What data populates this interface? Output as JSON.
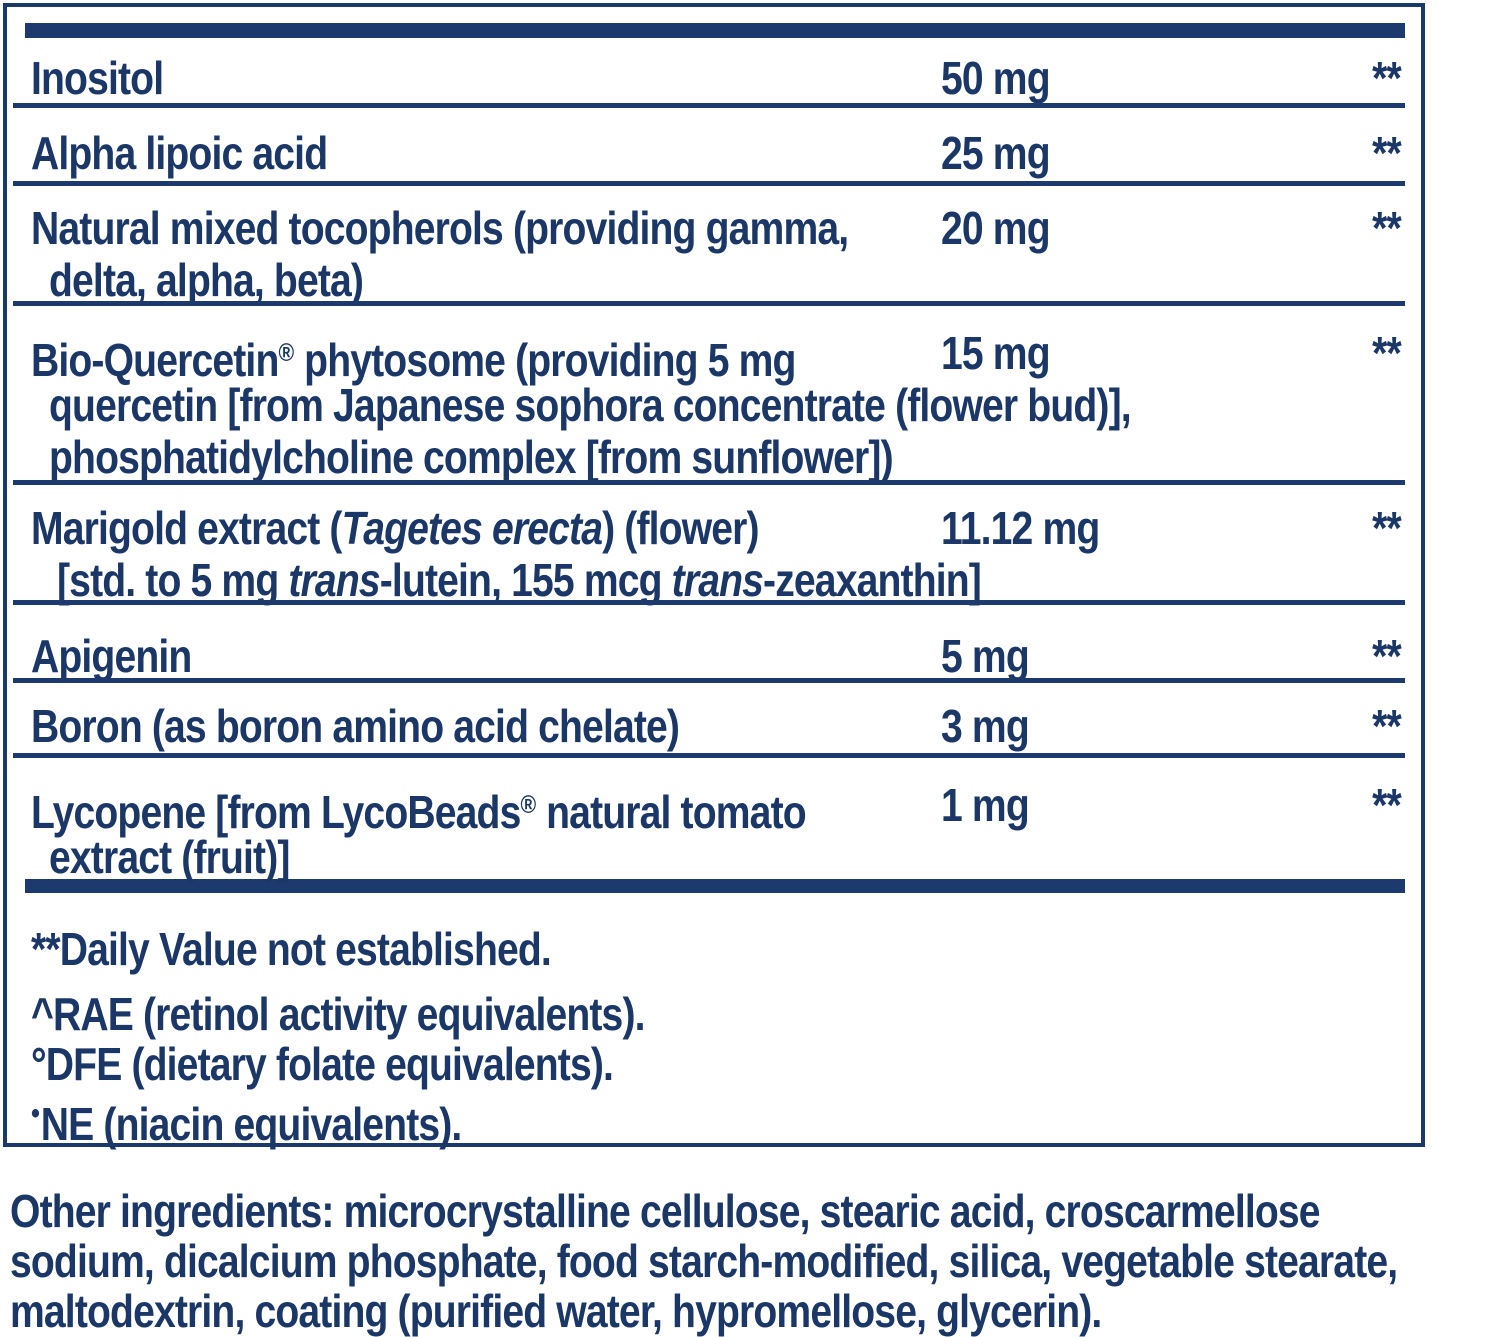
{
  "colors": {
    "navy_text": "#1b3767",
    "navy_rule": "#1c3a6e",
    "background": "#ffffff"
  },
  "supplement_table": {
    "rows": [
      {
        "name": "Inositol",
        "amount": "50 mg",
        "daily_value": "**"
      },
      {
        "name": "Alpha lipoic acid",
        "amount": "25 mg",
        "daily_value": "**"
      },
      {
        "name_line1": "Natural mixed tocopherols (providing gamma,",
        "name_line2": "delta, alpha, beta)",
        "amount": "20 mg",
        "daily_value": "**"
      },
      {
        "name_line1_pre_reg": "Bio-Quercetin",
        "reg_mark": "®",
        "name_line1_post_reg": " phytosome (providing 5 mg",
        "name_line2": "quercetin [from Japanese sophora concentrate (flower bud)],",
        "name_line3": "phosphatidylcholine complex [from sunflower])",
        "amount": "15 mg",
        "daily_value": "**"
      },
      {
        "name_seg1": "Marigold extract (",
        "name_seg2_italic": "Tagetes erecta",
        "name_seg3": ") (flower)",
        "line2_seg1": "[std. to 5 mg ",
        "line2_seg2_italic": "trans",
        "line2_seg3": "-lutein, 155 mcg ",
        "line2_seg4_italic": "trans",
        "line2_seg5": "-zeaxanthin]",
        "amount": "11.12 mg",
        "daily_value": "**"
      },
      {
        "name": "Apigenin",
        "amount": "5 mg",
        "daily_value": "**"
      },
      {
        "name": "Boron (as boron amino acid chelate)",
        "amount": "3 mg",
        "daily_value": "**"
      },
      {
        "name_line1_pre_reg": "Lycopene [from LycoBeads",
        "reg_mark": "®",
        "name_line1_post_reg": " natural tomato",
        "name_line2": "extract (fruit)]",
        "amount": "1 mg",
        "daily_value": "**"
      }
    ],
    "footnotes": {
      "daily_value_note": "**Daily Value not established.",
      "rae_note": "^RAE (retinol activity equivalents).",
      "dfe_note": "°DFE (dietary folate equivalents).",
      "ne_bullet": "•",
      "ne_note": "NE (niacin equivalents)."
    }
  },
  "other_ingredients": {
    "line1": "Other ingredients: microcrystalline cellulose, stearic acid, croscarmellose",
    "line2": "sodium, dicalcium phosphate, food starch-modified, silica, vegetable stearate,",
    "line3": "maltodextrin, coating (purified water, hypromellose, glycerin)."
  }
}
